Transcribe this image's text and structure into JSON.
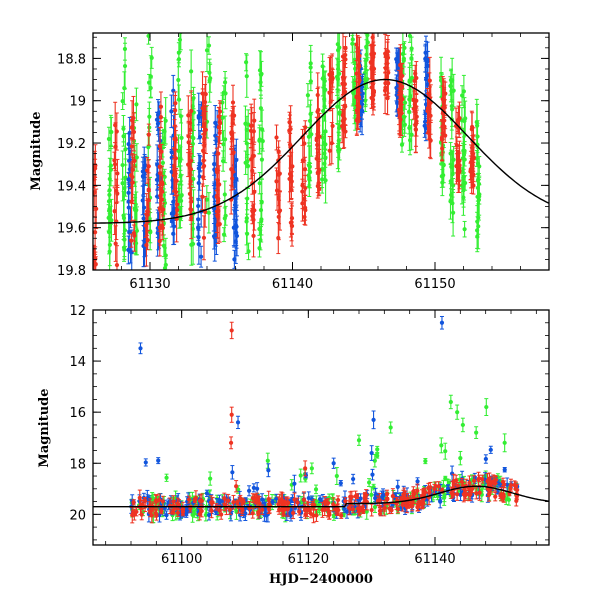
{
  "chart_data": [
    {
      "id": "top",
      "type": "scatter",
      "description": "Zoomed light curve, error-bar scatter in three colour bands with a black model curve",
      "ylabel": "Magnitude",
      "xlabel": "",
      "xlim": [
        61126,
        61158
      ],
      "ylim": [
        18.68,
        19.8
      ],
      "y_inverted": true,
      "xticks": [
        61130,
        61140,
        61150
      ],
      "xtick_labels": [
        "61130",
        "61140",
        "61150"
      ],
      "yticks": [
        18.8,
        19,
        19.2,
        19.4,
        19.6,
        19.8
      ],
      "ytick_labels": [
        "18.8",
        "19",
        "19.2",
        "19.4",
        "19.6",
        "19.8"
      ],
      "model": {
        "name": "model-curve",
        "peak_x": 61146.5,
        "peak_y": 18.9,
        "amp": 0.68,
        "base": 19.58,
        "width": 8.2
      },
      "series": [
        {
          "name": "green",
          "color": "#33ee33",
          "x": [
            61127.2,
            61128.2,
            61129.0,
            61130.0,
            61131.0,
            61132.1,
            61133.0,
            61134.1,
            61135.2,
            61136.8,
            61137.8,
            61141.2,
            61142.2,
            61143.2,
            61144.3,
            61145.2,
            61147.8,
            61148.3,
            61150.5,
            61151.2,
            61152.0,
            61153.0
          ],
          "y": [
            19.42,
            19.25,
            19.35,
            19.1,
            19.3,
            19.15,
            19.2,
            19.0,
            19.3,
            19.25,
            19.3,
            19.1,
            19.05,
            18.98,
            18.9,
            18.88,
            19.0,
            18.95,
            19.1,
            19.2,
            19.3,
            19.4
          ],
          "spread": [
            0.35,
            0.5,
            0.45,
            0.55,
            0.5,
            0.5,
            0.5,
            0.55,
            0.4,
            0.5,
            0.45,
            0.35,
            0.35,
            0.3,
            0.2,
            0.2,
            0.25,
            0.3,
            0.3,
            0.35,
            0.35,
            0.3
          ]
        },
        {
          "name": "blue",
          "color": "#1155dd",
          "x": [
            61128.6,
            61129.6,
            61130.6,
            61131.6,
            61133.5,
            61134.6,
            61136.0,
            61144.8,
            61147.4,
            61149.4
          ],
          "y": [
            19.45,
            19.4,
            19.35,
            19.3,
            19.4,
            19.35,
            19.5,
            18.95,
            18.9,
            18.95
          ],
          "spread": [
            0.3,
            0.35,
            0.3,
            0.35,
            0.35,
            0.3,
            0.25,
            0.12,
            0.15,
            0.2
          ]
        },
        {
          "name": "red",
          "color": "#ee3322",
          "x": [
            61126.1,
            61127.6,
            61128.8,
            61129.8,
            61130.8,
            61131.8,
            61132.8,
            61133.8,
            61134.8,
            61135.8,
            61137.2,
            61139.0,
            61139.9,
            61140.8,
            61141.8,
            61142.7,
            61143.6,
            61144.6,
            61145.6,
            61146.6,
            61147.6,
            61148.6,
            61149.6,
            61150.6,
            61151.6,
            61152.6
          ],
          "y": [
            19.55,
            19.45,
            19.4,
            19.4,
            19.35,
            19.3,
            19.3,
            19.3,
            19.35,
            19.3,
            19.35,
            19.4,
            19.35,
            19.3,
            19.2,
            19.05,
            18.95,
            18.9,
            18.85,
            18.9,
            18.95,
            19.0,
            19.05,
            19.1,
            19.2,
            19.25
          ],
          "spread": [
            0.25,
            0.35,
            0.35,
            0.3,
            0.35,
            0.3,
            0.3,
            0.35,
            0.3,
            0.3,
            0.3,
            0.25,
            0.25,
            0.25,
            0.25,
            0.2,
            0.2,
            0.2,
            0.15,
            0.15,
            0.15,
            0.15,
            0.15,
            0.15,
            0.15,
            0.15
          ]
        }
      ]
    },
    {
      "id": "bottom",
      "type": "scatter",
      "description": "Full light curve with outliers, error-bar scatter in three colour bands and a black model curve",
      "ylabel": "Magnitude",
      "xlabel": "HJD−2400000",
      "xlim": [
        61086,
        61158
      ],
      "ylim": [
        12,
        21.2
      ],
      "y_inverted": true,
      "xticks": [
        61100,
        61120,
        61140
      ],
      "xtick_labels": [
        "61100",
        "61120",
        "61140"
      ],
      "yticks": [
        12,
        14,
        16,
        18,
        20
      ],
      "ytick_labels": [
        "12",
        "14",
        "16",
        "18",
        "20"
      ],
      "baseline": {
        "x_start": 61092,
        "x_end": 61153,
        "mag": 19.7
      },
      "outliers": {
        "red": [
          [
            61107.9,
            12.8
          ],
          [
            61107.9,
            16.1
          ],
          [
            61107.8,
            17.2
          ],
          [
            61108.6,
            18.9
          ],
          [
            61119.5,
            18.2
          ]
        ],
        "blue": [
          [
            61093.5,
            13.5
          ],
          [
            61141.1,
            12.5
          ],
          [
            61130.3,
            16.3
          ],
          [
            61130.0,
            17.6
          ],
          [
            61108.9,
            16.4
          ],
          [
            61124.0,
            18.0
          ],
          [
            61117.8,
            18.8
          ]
        ],
        "green": [
          [
            61128.0,
            17.1
          ],
          [
            61130.5,
            17.9
          ],
          [
            61141.0,
            17.3
          ],
          [
            61142.5,
            15.6
          ],
          [
            61143.5,
            16.0
          ],
          [
            61144.4,
            16.5
          ],
          [
            61146.5,
            16.8
          ],
          [
            61148.1,
            15.8
          ],
          [
            61133.0,
            16.6
          ],
          [
            61124.5,
            18.5
          ],
          [
            61104.5,
            18.6
          ],
          [
            61113.6,
            17.9
          ],
          [
            61144.0,
            17.8
          ],
          [
            61151.0,
            17.2
          ]
        ]
      }
    }
  ]
}
